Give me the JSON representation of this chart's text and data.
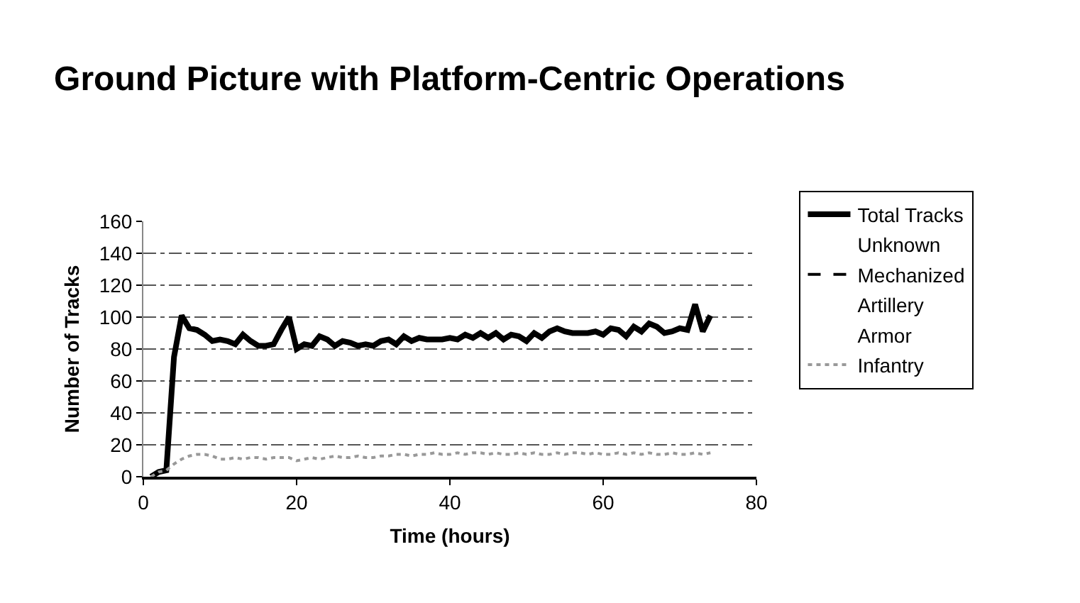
{
  "chart_data": {
    "type": "line",
    "title": "Ground Picture with Platform-Centric Operations",
    "xlabel": "Time (hours)",
    "ylabel": "Number of Tracks",
    "xlim": [
      0,
      80
    ],
    "xticks": [
      0,
      20,
      40,
      60,
      80
    ],
    "ylim": [
      0,
      160
    ],
    "yticks": [
      0,
      20,
      40,
      60,
      80,
      100,
      120,
      140,
      160
    ],
    "grid": "y",
    "legend": "right",
    "marker": "none",
    "x": [
      1,
      2,
      3,
      4,
      5,
      6,
      7,
      8,
      9,
      10,
      11,
      12,
      13,
      14,
      15,
      16,
      17,
      18,
      19,
      20,
      21,
      22,
      23,
      24,
      25,
      26,
      27,
      28,
      29,
      30,
      31,
      32,
      33,
      34,
      35,
      36,
      37,
      38,
      39,
      40,
      41,
      42,
      43,
      44,
      45,
      46,
      47,
      48,
      49,
      50,
      51,
      52,
      53,
      54,
      55,
      56,
      57,
      58,
      59,
      60,
      61,
      62,
      63,
      64,
      65,
      66,
      67,
      68,
      69,
      70,
      71,
      72,
      73,
      74
    ],
    "series": [
      {
        "name": "Total Tracks",
        "color": "#000000",
        "line_style": "solid",
        "values": [
          0,
          3,
          4,
          75,
          101,
          93,
          92,
          89,
          85,
          86,
          85,
          83,
          89,
          85,
          82,
          82,
          83,
          92,
          100,
          80,
          83,
          82,
          88,
          86,
          82,
          85,
          84,
          82,
          83,
          82,
          85,
          86,
          83,
          88,
          85,
          87,
          86,
          86,
          86,
          87,
          86,
          89,
          87,
          90,
          87,
          90,
          86,
          89,
          88,
          85,
          90,
          87,
          91,
          93,
          91,
          90,
          90,
          90,
          91,
          89,
          93,
          92,
          88,
          94,
          91,
          96,
          94,
          90,
          91,
          93,
          92,
          108,
          91,
          101
        ]
      },
      {
        "name": "Unknown",
        "line_style": "solid",
        "values": [
          null,
          null,
          null,
          null,
          null,
          null,
          null,
          null,
          null,
          null,
          null,
          null,
          null,
          null,
          null,
          null,
          null,
          null,
          null,
          null,
          null,
          null,
          null,
          null,
          null,
          null,
          null,
          null,
          null,
          null,
          null,
          null,
          null,
          null,
          null,
          null,
          null,
          null,
          null,
          null,
          null,
          null,
          null,
          null,
          null,
          null,
          null,
          null,
          null,
          null,
          null,
          null,
          null,
          null,
          null,
          null,
          null,
          null,
          null,
          null,
          null,
          null,
          null,
          null,
          null,
          null,
          null,
          null,
          null,
          null,
          null,
          null,
          null,
          null
        ]
      },
      {
        "name": "Mechanized",
        "color": "#000000",
        "line_style": "dashed",
        "values": [
          null,
          null,
          null,
          null,
          null,
          null,
          null,
          null,
          null,
          null,
          null,
          null,
          null,
          null,
          null,
          null,
          null,
          null,
          null,
          null,
          null,
          null,
          null,
          null,
          null,
          null,
          null,
          null,
          null,
          null,
          null,
          null,
          null,
          null,
          null,
          null,
          null,
          null,
          null,
          null,
          null,
          null,
          null,
          null,
          null,
          null,
          null,
          null,
          null,
          null,
          null,
          null,
          null,
          null,
          null,
          null,
          null,
          null,
          null,
          null,
          null,
          null,
          null,
          null,
          null,
          null,
          null,
          null,
          null,
          null,
          null,
          null,
          null,
          null
        ]
      },
      {
        "name": "Artillery",
        "line_style": "solid",
        "values": [
          null,
          null,
          null,
          null,
          null,
          null,
          null,
          null,
          null,
          null,
          null,
          null,
          null,
          null,
          null,
          null,
          null,
          null,
          null,
          null,
          null,
          null,
          null,
          null,
          null,
          null,
          null,
          null,
          null,
          null,
          null,
          null,
          null,
          null,
          null,
          null,
          null,
          null,
          null,
          null,
          null,
          null,
          null,
          null,
          null,
          null,
          null,
          null,
          null,
          null,
          null,
          null,
          null,
          null,
          null,
          null,
          null,
          null,
          null,
          null,
          null,
          null,
          null,
          null,
          null,
          null,
          null,
          null,
          null,
          null,
          null,
          null,
          null,
          null
        ]
      },
      {
        "name": "Armor",
        "line_style": "solid",
        "values": [
          null,
          null,
          null,
          null,
          null,
          null,
          null,
          null,
          null,
          null,
          null,
          null,
          null,
          null,
          null,
          null,
          null,
          null,
          null,
          null,
          null,
          null,
          null,
          null,
          null,
          null,
          null,
          null,
          null,
          null,
          null,
          null,
          null,
          null,
          null,
          null,
          null,
          null,
          null,
          null,
          null,
          null,
          null,
          null,
          null,
          null,
          null,
          null,
          null,
          null,
          null,
          null,
          null,
          null,
          null,
          null,
          null,
          null,
          null,
          null,
          null,
          null,
          null,
          null,
          null,
          null,
          null,
          null,
          null,
          null,
          null,
          null,
          null,
          null
        ]
      },
      {
        "name": "Infantry",
        "color": "#999999",
        "line_style": "dotted",
        "values": [
          0,
          3,
          4,
          8,
          11,
          13,
          14,
          14,
          13,
          11,
          11,
          12,
          11,
          12,
          12,
          11,
          12,
          12,
          12,
          10,
          11,
          12,
          11,
          12,
          13,
          12,
          12,
          13,
          12,
          12,
          13,
          13,
          14,
          14,
          13,
          14,
          14,
          15,
          14,
          14,
          15,
          14,
          15,
          15,
          14,
          15,
          14,
          14,
          15,
          14,
          15,
          14,
          14,
          15,
          14,
          15,
          15,
          14,
          15,
          14,
          14,
          15,
          14,
          15,
          14,
          15,
          14,
          14,
          15,
          14,
          14,
          15,
          14,
          15
        ]
      }
    ]
  }
}
